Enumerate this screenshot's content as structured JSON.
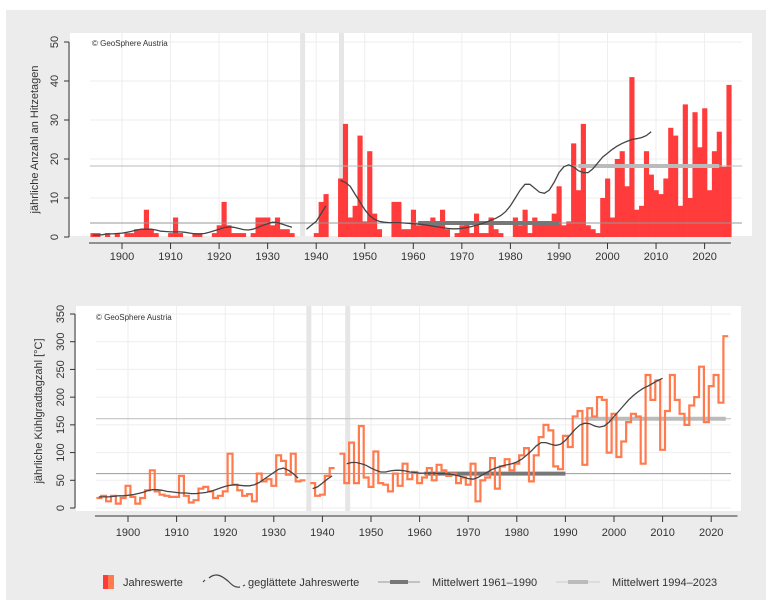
{
  "colors": {
    "bar": "#ff3b3b",
    "step": "#ff7a4d",
    "smooth": "#444444",
    "mean1": "#777777",
    "mean2": "#bbbbbb",
    "grid": "#eeeeee",
    "panel": "#ececec"
  },
  "legend": {
    "items": [
      "Jahreswerte",
      "geglättete Jahreswerte",
      "Mittelwert 1961–1990",
      "Mittelwert 1994–2023"
    ]
  },
  "chart_data": [
    {
      "type": "bar",
      "title": "",
      "copyright": "© GeoSphere Austria",
      "xlabel": "",
      "ylabel": "jährliche Anzahl an Hitzetagen",
      "xlim": [
        1893,
        2025
      ],
      "ylim": [
        0,
        50
      ],
      "xticks": [
        "1900",
        "1910",
        "1920",
        "1930",
        "1940",
        "1950",
        "1960",
        "1970",
        "1980",
        "1990",
        "2000",
        "2010",
        "2020"
      ],
      "yticks": [
        "0",
        "10",
        "20",
        "30",
        "40",
        "50"
      ],
      "gaps": [
        1937,
        1945
      ],
      "start_year": 1894,
      "values": [
        1,
        1,
        0,
        1,
        0,
        1,
        0,
        1,
        1,
        2,
        2,
        7,
        2,
        1,
        0,
        0,
        1,
        5,
        1,
        0,
        0,
        1,
        1,
        0,
        0,
        1,
        3,
        9,
        3,
        1,
        1,
        1,
        0,
        1,
        5,
        5,
        5,
        3,
        5,
        2,
        2,
        1,
        0,
        null,
        0,
        0,
        1,
        9,
        11,
        0,
        null,
        15,
        29,
        5,
        8,
        26,
        4,
        22,
        6,
        2,
        0,
        0,
        9,
        9,
        2,
        2,
        7,
        3,
        4,
        4,
        5,
        4,
        7,
        2,
        0,
        1,
        3,
        4,
        1,
        6,
        1,
        1,
        5,
        2,
        1,
        0,
        0,
        5,
        3,
        7,
        1,
        5,
        4,
        4,
        4,
        6,
        13,
        3,
        4,
        24,
        12,
        29,
        3,
        2,
        1,
        10,
        15,
        5,
        20,
        22,
        13,
        41,
        7,
        8,
        22,
        16,
        12,
        11,
        15,
        28,
        26,
        8,
        34,
        10,
        32,
        23,
        33,
        12,
        22,
        27,
        18,
        39
      ],
      "smooth": [
        0.5,
        0.5,
        0.6,
        0.8,
        0.8,
        0.9,
        1,
        1.2,
        1.5,
        1.8,
        2,
        2,
        2,
        1.8,
        1.5,
        1.4,
        1.3,
        1.3,
        1.3,
        1.2,
        1,
        0.8,
        0.8,
        0.9,
        1.2,
        1.6,
        2,
        2.4,
        2.6,
        2.5,
        2.2,
        1.9,
        1.8,
        2,
        2.5,
        3,
        3.4,
        3.8,
        3.7,
        3.3,
        2.9,
        2.5,
        null,
        null,
        2,
        3,
        4,
        6,
        8,
        null,
        null,
        14.5,
        14,
        13,
        11,
        9,
        7,
        5.5,
        4.5,
        4,
        3.8,
        3.7,
        3.7,
        3.7,
        3.6,
        3.5,
        3.4,
        3.3,
        3.2,
        3,
        2.8,
        2.6,
        2.4,
        2.2,
        2.1,
        2.1,
        2.2,
        2.4,
        2.7,
        3,
        3.4,
        3.8,
        4.3,
        4.8,
        5.5,
        6.5,
        8,
        10,
        12,
        13.5,
        13.5,
        12.5,
        11.5,
        11.2,
        12,
        14,
        16.5,
        18,
        18.5,
        18,
        17,
        16.5,
        16.5,
        17.5,
        19,
        20.5,
        21.5,
        22.5,
        23.3,
        24,
        24.5,
        25,
        25.2,
        25.5,
        26,
        27
      ],
      "series": [
        {
          "name": "Mittelwert 1961–1990",
          "from": 1961,
          "to": 1990,
          "value": 3.6
        },
        {
          "name": "Mittelwert 1994–2023",
          "from": 1994,
          "to": 2023,
          "value": 18.2
        }
      ]
    },
    {
      "type": "line",
      "title": "",
      "copyright": "© GeoSphere Austria",
      "xlabel": "",
      "ylabel": "jährliche Kühlgradtagzahl [°C]",
      "xlim": [
        1893,
        2025
      ],
      "ylim": [
        0,
        350
      ],
      "xticks": [
        "1900",
        "1910",
        "1920",
        "1930",
        "1940",
        "1950",
        "1960",
        "1970",
        "1980",
        "1990",
        "2000",
        "2010",
        "2020"
      ],
      "yticks": [
        "0",
        "50",
        "100",
        "150",
        "200",
        "250",
        "300",
        "350"
      ],
      "gaps": [
        1937,
        1945
      ],
      "start_year": 1894,
      "values": [
        18,
        22,
        12,
        22,
        8,
        18,
        40,
        20,
        8,
        18,
        32,
        68,
        30,
        24,
        22,
        20,
        20,
        58,
        22,
        10,
        14,
        35,
        38,
        30,
        18,
        22,
        30,
        98,
        42,
        32,
        22,
        25,
        12,
        62,
        48,
        52,
        40,
        95,
        85,
        60,
        98,
        48,
        50,
        null,
        45,
        22,
        24,
        58,
        72,
        null,
        98,
        45,
        118,
        45,
        148,
        55,
        38,
        102,
        45,
        42,
        30,
        62,
        40,
        80,
        52,
        65,
        45,
        55,
        72,
        50,
        78,
        68,
        58,
        62,
        45,
        55,
        42,
        80,
        12,
        50,
        55,
        90,
        35,
        75,
        88,
        68,
        80,
        95,
        108,
        48,
        95,
        128,
        150,
        140,
        75,
        70,
        130,
        110,
        165,
        175,
        78,
        180,
        165,
        200,
        195,
        100,
        170,
        92,
        120,
        155,
        170,
        165,
        80,
        240,
        195,
        230,
        105,
        175,
        240,
        195,
        170,
        150,
        185,
        200,
        255,
        155,
        220,
        240,
        190,
        310
      ],
      "smooth": [
        20,
        20,
        20,
        21,
        22,
        22,
        23,
        24,
        26,
        28,
        31,
        33,
        33,
        32,
        30,
        29,
        28,
        27,
        27,
        26,
        26,
        27,
        28,
        30,
        33,
        36,
        39,
        41,
        42,
        41,
        40,
        40,
        42,
        46,
        52,
        58,
        64,
        70,
        72,
        68,
        62,
        54,
        null,
        null,
        35,
        38,
        45,
        52,
        58,
        null,
        null,
        80,
        82,
        82,
        80,
        77,
        72,
        68,
        65,
        65,
        67,
        68,
        68,
        67,
        65,
        64,
        63,
        63,
        63,
        63,
        62,
        62,
        61,
        60,
        58,
        56,
        53,
        52,
        55,
        60,
        65,
        70,
        73,
        76,
        78,
        80,
        83,
        88,
        95,
        103,
        112,
        118,
        118,
        115,
        113,
        115,
        122,
        132,
        142,
        150,
        153,
        152,
        148,
        146,
        148,
        155,
        165,
        175,
        185,
        195,
        203,
        210,
        216,
        220,
        225,
        230,
        234
      ],
      "series": [
        {
          "name": "Mittelwert 1961–1990",
          "from": 1961,
          "to": 1990,
          "value": 62
        },
        {
          "name": "Mittelwert 1994–2023",
          "from": 1994,
          "to": 2023,
          "value": 161
        }
      ]
    }
  ]
}
